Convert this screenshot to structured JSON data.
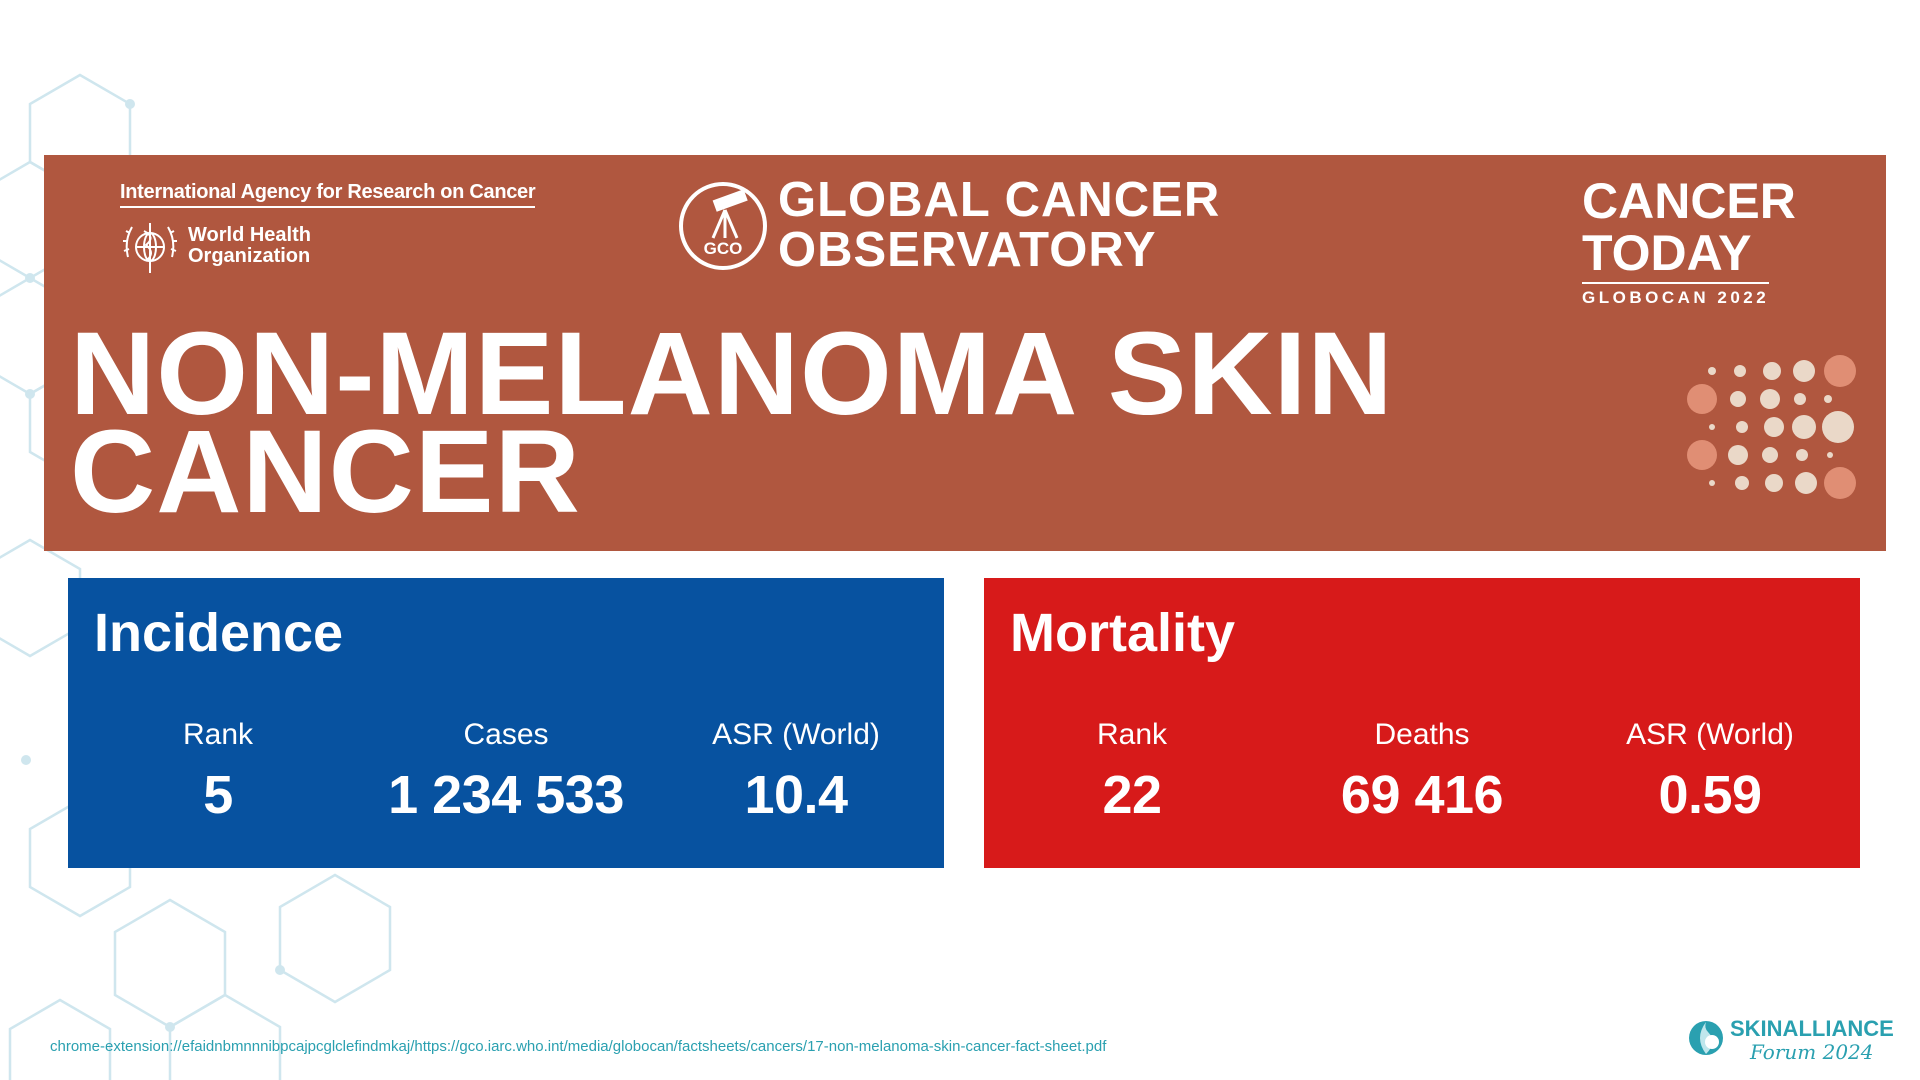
{
  "banner": {
    "iarc_name": "International Agency for Research on Cancer",
    "who_name": "World Health Organization",
    "gco_badge": "GCO",
    "gco_title": "GLOBAL CANCER\nOBSERVATORY",
    "cancer_today": "CANCER\nTODAY",
    "globocan": "GLOBOCAN 2022",
    "main_title": "NON-MELANOMA SKIN\nCANCER",
    "color": "#b0573f"
  },
  "incidence": {
    "title": "Incidence",
    "color": "#0752a0",
    "stats": [
      {
        "label": "Rank",
        "value": "5"
      },
      {
        "label": "Cases",
        "value": "1 234 533"
      },
      {
        "label": "ASR (World)",
        "value": "10.4"
      }
    ]
  },
  "mortality": {
    "title": "Mortality",
    "color": "#d71a1a",
    "stats": [
      {
        "label": "Rank",
        "value": "22"
      },
      {
        "label": "Deaths",
        "value": "69 416"
      },
      {
        "label": "ASR (World)",
        "value": "0.59"
      }
    ]
  },
  "footer": {
    "url": "chrome-extension://efaidnbmnnnibpcajpcglclefindmkaj/https://gco.iarc.who.int/media/globocan/factsheets/cancers/17-non-melanoma-skin-cancer-fact-sheet.pdf",
    "brand_name": "SKINALLIANCE",
    "brand_forum": "Forum 2024",
    "brand_color": "#2aa0b0"
  },
  "icons": [
    "hexagon-pattern",
    "who-emblem-icon",
    "gco-telescope-icon",
    "dot-pattern",
    "skinalliance-icon"
  ]
}
